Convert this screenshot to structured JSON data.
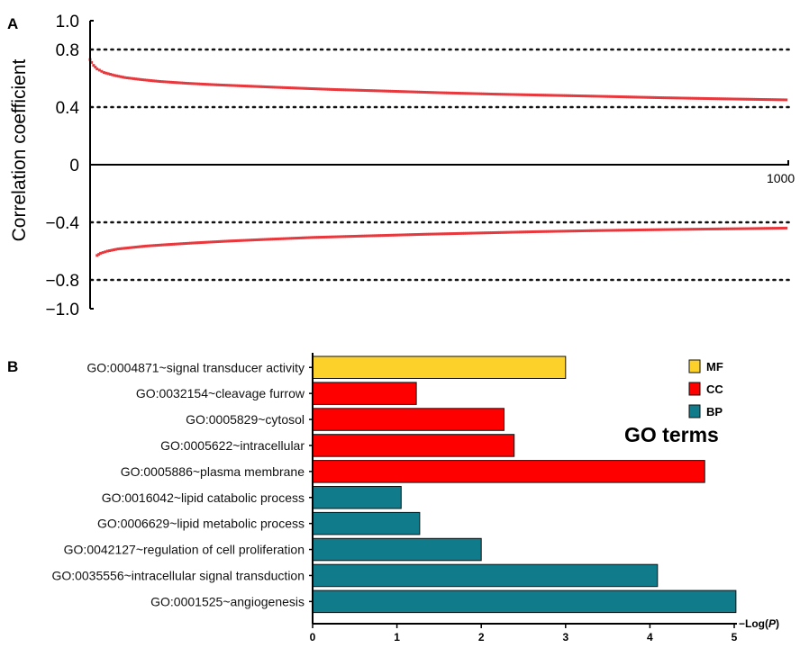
{
  "panel_a_label": "A",
  "panel_b_label": "B",
  "colors": {
    "points": "#e8383d",
    "MF": "#fcd12a",
    "CC": "#ff0000",
    "BP": "#0f7b8b"
  },
  "chart_data": [
    {
      "type": "scatter",
      "ylabel": "Correlation coefficient",
      "ylim": [
        -1.0,
        1.0
      ],
      "xlim": [
        0,
        1000
      ],
      "y_tick_labels": [
        "1.0",
        "0.8",
        "0.4",
        "0",
        "−0.4",
        "−0.8",
        "−1.0"
      ],
      "y_ticks": [
        1.0,
        0.8,
        0.4,
        0,
        -0.4,
        -0.8,
        -1.0
      ],
      "x_end_label": "1000",
      "threshold_lines": [
        0.8,
        0.4,
        -0.4,
        -0.8
      ],
      "grid": false,
      "series": [
        {
          "values": [
            [
              0,
              0.73
            ],
            [
              2,
              0.71
            ],
            [
              5,
              0.69
            ],
            [
              10,
              0.665
            ],
            [
              20,
              0.64
            ],
            [
              35,
              0.62
            ],
            [
              50,
              0.605
            ],
            [
              75,
              0.59
            ],
            [
              100,
              0.578
            ],
            [
              140,
              0.565
            ],
            [
              180,
              0.555
            ],
            [
              230,
              0.545
            ],
            [
              280,
              0.535
            ],
            [
              350,
              0.522
            ],
            [
              420,
              0.512
            ],
            [
              500,
              0.5
            ],
            [
              580,
              0.49
            ],
            [
              660,
              0.482
            ],
            [
              740,
              0.474
            ],
            [
              820,
              0.465
            ],
            [
              900,
              0.458
            ],
            [
              1000,
              0.45
            ]
          ]
        },
        {
          "values": [
            [
              10,
              -0.63
            ],
            [
              15,
              -0.615
            ],
            [
              25,
              -0.6
            ],
            [
              40,
              -0.585
            ],
            [
              60,
              -0.575
            ],
            [
              80,
              -0.565
            ],
            [
              110,
              -0.555
            ],
            [
              150,
              -0.543
            ],
            [
              200,
              -0.53
            ],
            [
              260,
              -0.517
            ],
            [
              320,
              -0.505
            ],
            [
              400,
              -0.494
            ],
            [
              480,
              -0.483
            ],
            [
              560,
              -0.474
            ],
            [
              640,
              -0.465
            ],
            [
              720,
              -0.458
            ],
            [
              800,
              -0.452
            ],
            [
              880,
              -0.447
            ],
            [
              940,
              -0.444
            ],
            [
              1000,
              -0.44
            ]
          ]
        }
      ]
    },
    {
      "type": "bar",
      "orientation": "horizontal",
      "xlabel": "−Log(P)",
      "xlim": [
        0,
        5
      ],
      "x_ticks": [
        "0",
        "1",
        "2",
        "3",
        "4",
        "5"
      ],
      "categories": [
        "GO:0004871~signal transducer activity",
        "GO:0032154~cleavage furrow",
        "GO:0005829~cytosol",
        "GO:0005622~intracellular",
        "GO:0005886~plasma membrane",
        "GO:0016042~lipid catabolic process",
        "GO:0006629~lipid metabolic process",
        "GO:0042127~regulation of cell proliferation",
        "GO:0035556~intracellular signal transduction",
        "GO:0001525~angiogenesis"
      ],
      "values": [
        3.0,
        1.23,
        2.27,
        2.39,
        4.65,
        1.05,
        1.27,
        2.0,
        4.09,
        5.02
      ],
      "groups": [
        "MF",
        "CC",
        "CC",
        "CC",
        "CC",
        "BP",
        "BP",
        "BP",
        "BP",
        "BP"
      ],
      "legend": {
        "title": "GO terms",
        "items": [
          "MF",
          "CC",
          "BP"
        ],
        "position": "right"
      }
    }
  ]
}
